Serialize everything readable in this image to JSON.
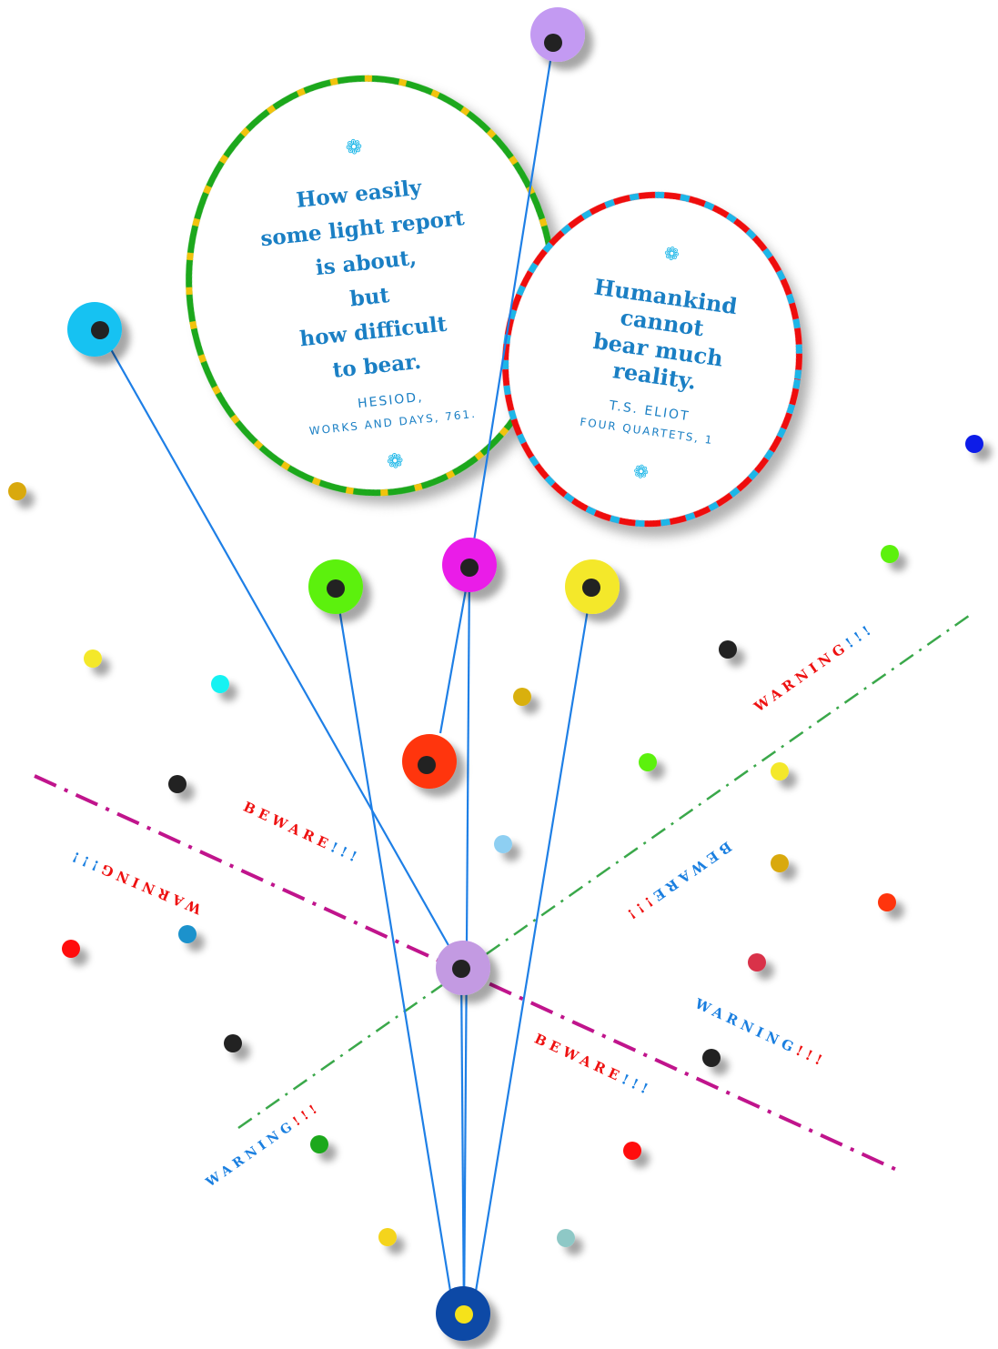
{
  "quotes": {
    "left": {
      "lines": [
        "How easily",
        "some light report",
        "is about,",
        "but",
        "how difficult",
        "to bear."
      ],
      "author": "HESIOD,",
      "source": "WORKS AND DAYS, 761."
    },
    "right": {
      "lines": [
        "Humankind",
        "cannot",
        "bear much",
        "reality."
      ],
      "author": "T.S. ELIOT",
      "source": "FOUR QUARTETS, 1"
    }
  },
  "labels": {
    "warning": "WARNING",
    "beware": "BEWARE",
    "bang": "!!!"
  },
  "colors": {
    "quote_text": "#1a7fc4",
    "string_line": "#1e7fe6",
    "magenta_dash": "#c0148c",
    "green_dash": "#3aa84a",
    "warning_red": "#ee1111",
    "warning_blue": "#1a7fe0"
  },
  "icons": {
    "ornament": "flower-ornament-icon"
  }
}
